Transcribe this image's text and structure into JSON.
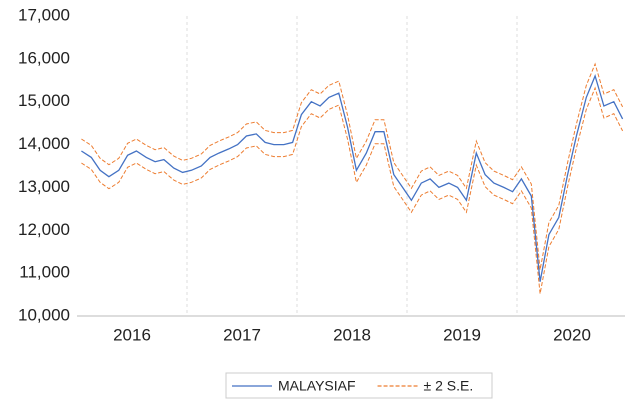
{
  "chart_data": {
    "type": "line",
    "x": [
      2016.04,
      2016.13,
      2016.21,
      2016.29,
      2016.38,
      2016.46,
      2016.54,
      2016.63,
      2016.71,
      2016.79,
      2016.88,
      2016.96,
      2017.04,
      2017.13,
      2017.21,
      2017.29,
      2017.38,
      2017.46,
      2017.54,
      2017.63,
      2017.71,
      2017.79,
      2017.88,
      2017.96,
      2018.04,
      2018.13,
      2018.21,
      2018.29,
      2018.38,
      2018.46,
      2018.54,
      2018.63,
      2018.71,
      2018.79,
      2018.88,
      2018.96,
      2019.04,
      2019.13,
      2019.21,
      2019.29,
      2019.38,
      2019.46,
      2019.54,
      2019.63,
      2019.71,
      2019.79,
      2019.88,
      2019.96,
      2020.04,
      2020.13,
      2020.21,
      2020.29,
      2020.38,
      2020.46,
      2020.54,
      2020.63,
      2020.71,
      2020.79,
      2020.88,
      2020.96
    ],
    "series": [
      {
        "name": "MALAYSIAF",
        "color": "#4472c4",
        "dashed": false,
        "values": [
          13850,
          13700,
          13400,
          13250,
          13400,
          13750,
          13850,
          13700,
          13600,
          13650,
          13450,
          13350,
          13400,
          13500,
          13700,
          13800,
          13900,
          14000,
          14200,
          14250,
          14050,
          14000,
          14000,
          14050,
          14700,
          15000,
          14900,
          15100,
          15200,
          14400,
          13400,
          13800,
          14300,
          14300,
          13300,
          13000,
          12700,
          13100,
          13200,
          13000,
          13100,
          13000,
          12700,
          13800,
          13300,
          13100,
          13000,
          12900,
          13200,
          12800,
          10800,
          11900,
          12300,
          13300,
          14200,
          15100,
          15600,
          14900,
          15000,
          14600
        ]
      },
      {
        "name": "± 2 S.E.",
        "color": "#ed7d31",
        "dashed": true,
        "upper": [
          14130,
          13980,
          13680,
          13530,
          13680,
          14030,
          14130,
          13980,
          13880,
          13930,
          13730,
          13630,
          13680,
          13780,
          13980,
          14080,
          14180,
          14280,
          14480,
          14530,
          14330,
          14280,
          14280,
          14330,
          14980,
          15280,
          15180,
          15380,
          15480,
          14680,
          13680,
          14080,
          14580,
          14580,
          13580,
          13280,
          12980,
          13380,
          13480,
          13280,
          13380,
          13280,
          12980,
          14080,
          13580,
          13380,
          13280,
          13180,
          13480,
          13080,
          11080,
          12180,
          12580,
          13580,
          14480,
          15380,
          15880,
          15180,
          15280,
          14880
        ],
        "lower": [
          13570,
          13420,
          13120,
          12970,
          13120,
          13470,
          13570,
          13420,
          13320,
          13370,
          13170,
          13070,
          13120,
          13220,
          13420,
          13520,
          13620,
          13720,
          13920,
          13970,
          13770,
          13720,
          13720,
          13770,
          14420,
          14720,
          14620,
          14820,
          14920,
          14120,
          13120,
          13520,
          14020,
          14020,
          13020,
          12720,
          12420,
          12820,
          12920,
          12720,
          12820,
          12720,
          12420,
          13520,
          13020,
          12820,
          12720,
          12620,
          12920,
          12520,
          10520,
          11620,
          12020,
          13020,
          13920,
          14820,
          15320,
          14620,
          14720,
          14320
        ]
      }
    ],
    "xlim": [
      2016,
      2021
    ],
    "xticks": [
      {
        "value": 2016,
        "label": "2016"
      },
      {
        "value": 2017,
        "label": "2017"
      },
      {
        "value": 2018,
        "label": "2018"
      },
      {
        "value": 2019,
        "label": "2019"
      },
      {
        "value": 2020,
        "label": "2020"
      }
    ],
    "ylim": [
      10000,
      17000
    ],
    "yticks": [
      {
        "value": 10000,
        "label": "10,000"
      },
      {
        "value": 11000,
        "label": "11,000"
      },
      {
        "value": 12000,
        "label": "12,000"
      },
      {
        "value": 13000,
        "label": "13,000"
      },
      {
        "value": 14000,
        "label": "14,000"
      },
      {
        "value": 15000,
        "label": "15,000"
      },
      {
        "value": 16000,
        "label": "16,000"
      },
      {
        "value": 17000,
        "label": "17,000"
      }
    ],
    "legend": "bottom"
  }
}
